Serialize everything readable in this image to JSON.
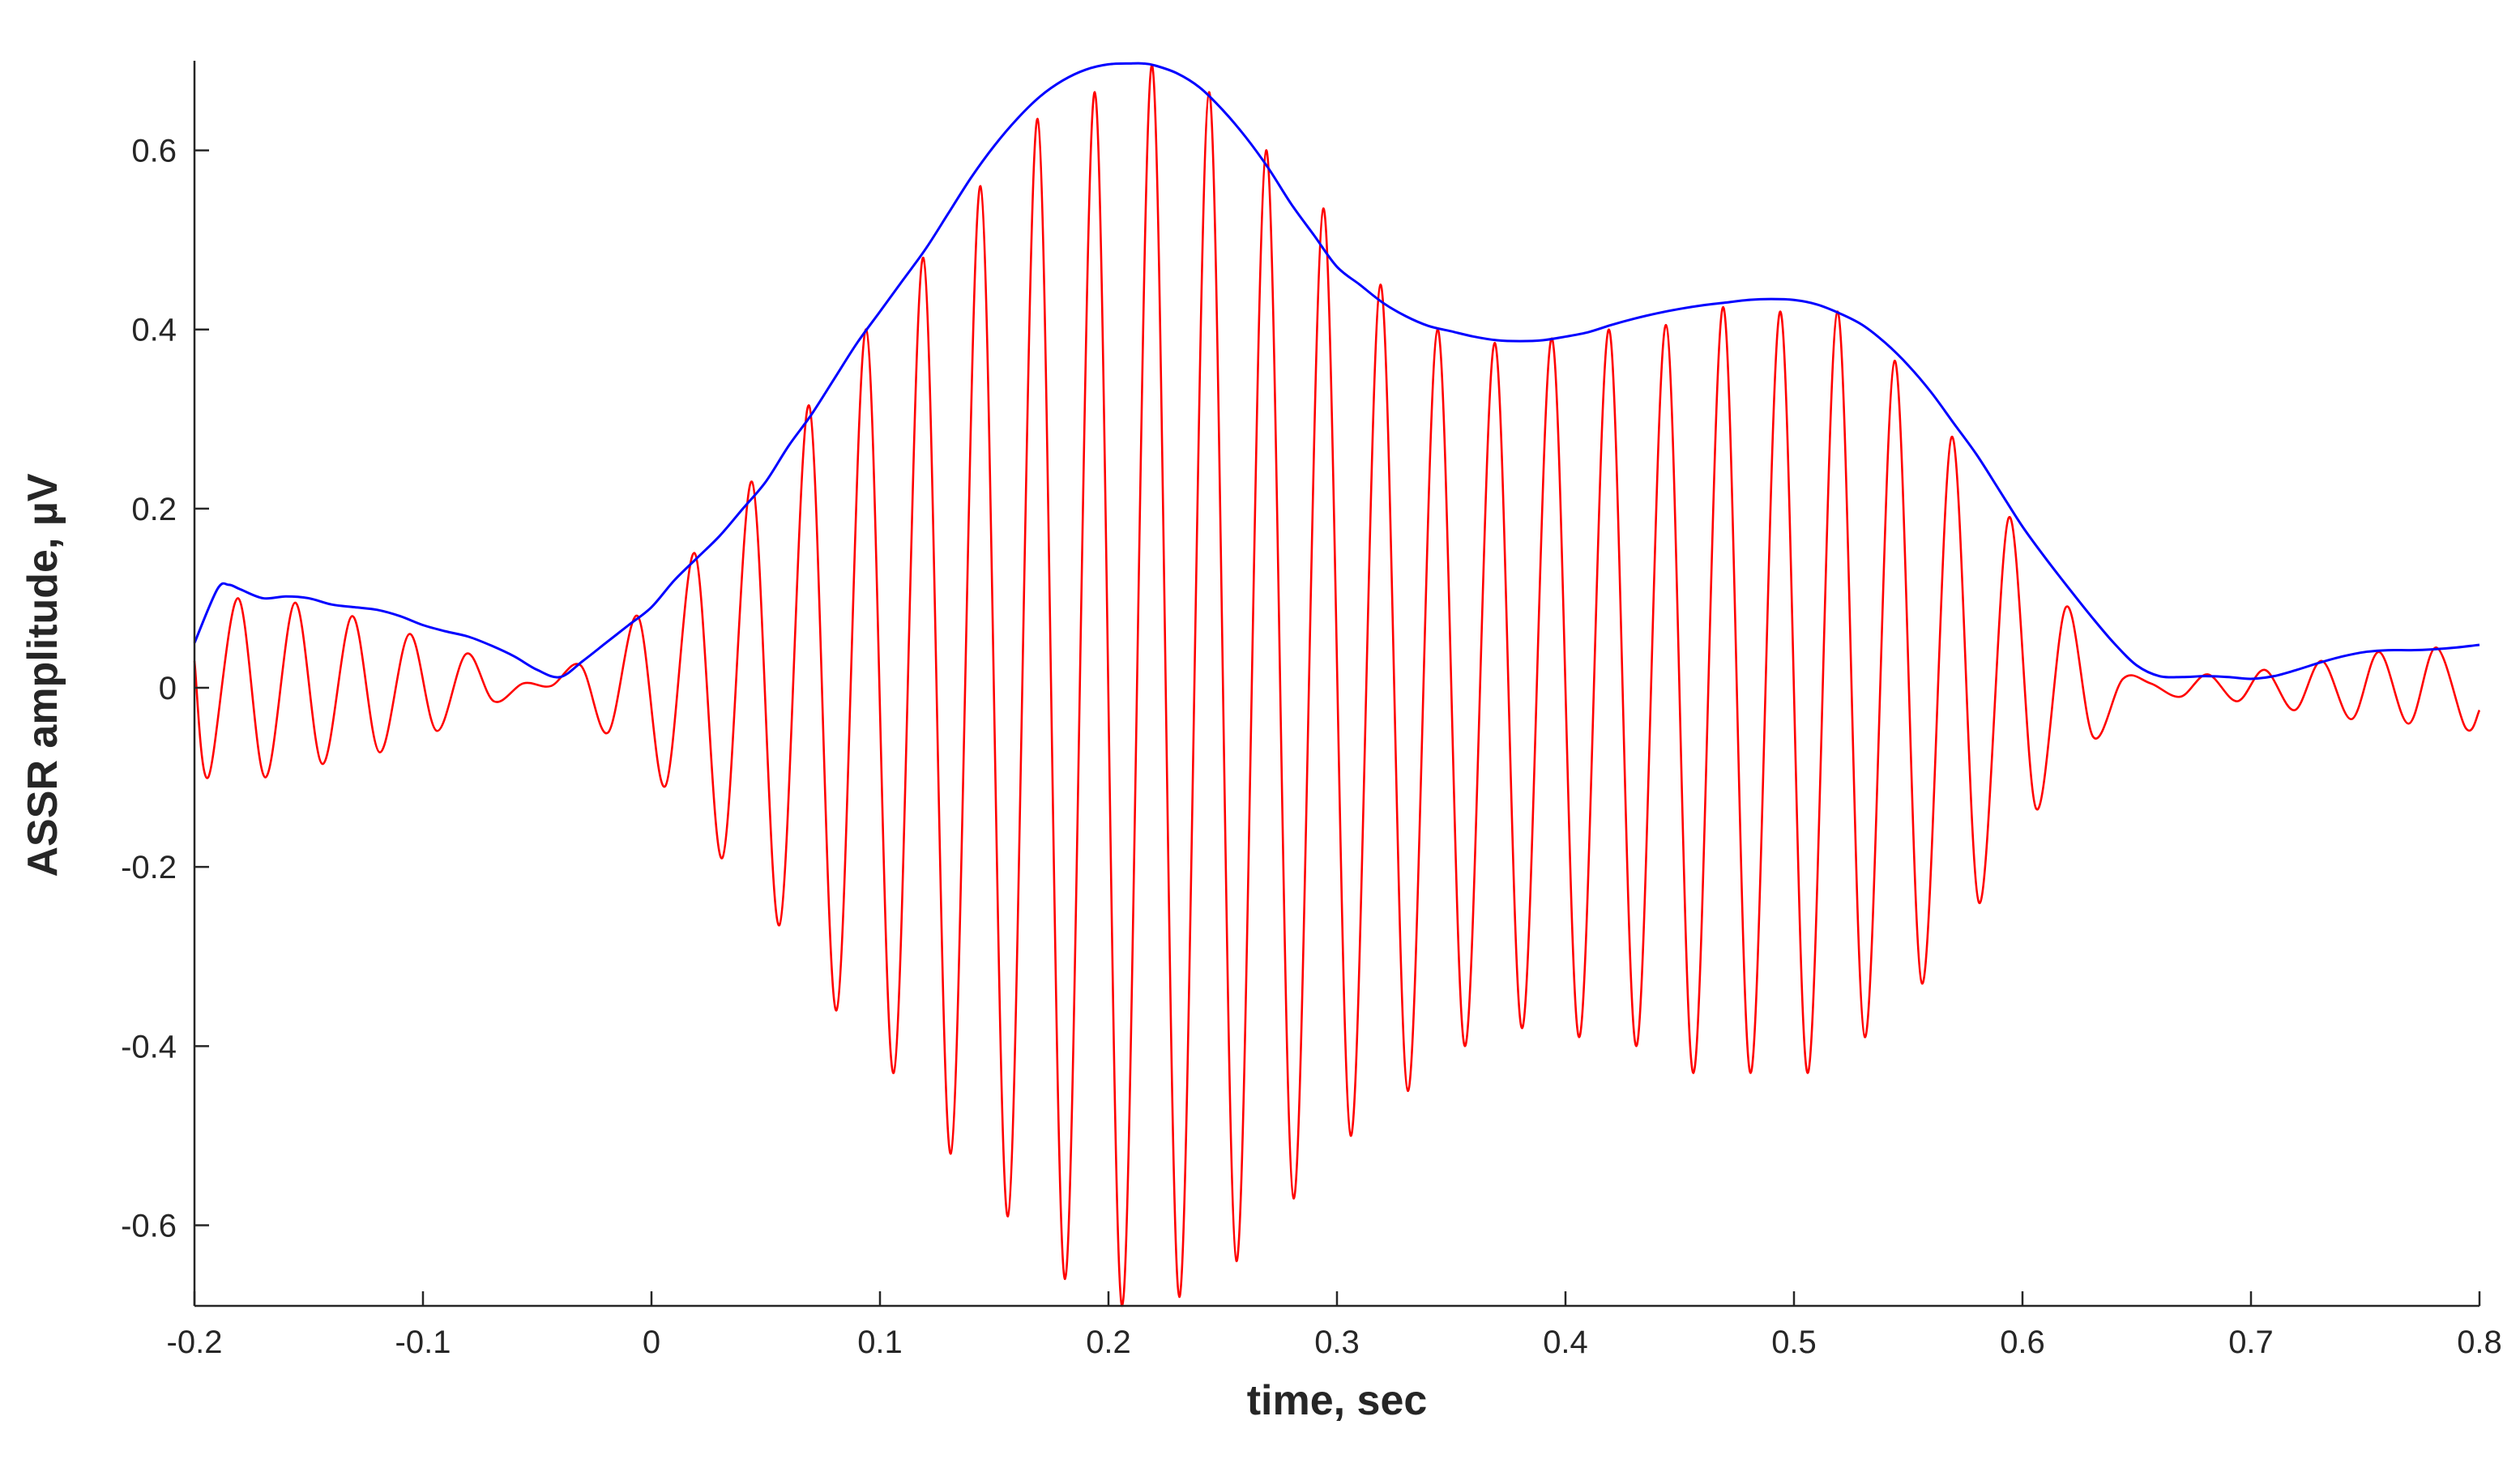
{
  "chart_data": {
    "type": "line",
    "title": "",
    "xlabel": "time, sec",
    "ylabel": "ASSR amplitude, µV",
    "xlim": [
      -0.2,
      0.8
    ],
    "ylim": [
      -0.69,
      0.7
    ],
    "xticks": [
      -0.2,
      -0.1,
      0,
      0.1,
      0.2,
      0.3,
      0.4,
      0.5,
      0.6,
      0.7,
      0.8
    ],
    "xtick_labels": [
      "-0.2",
      "-0.1",
      "0",
      "0.1",
      "0.2",
      "0.3",
      "0.4",
      "0.5",
      "0.6",
      "0.7",
      "0.8"
    ],
    "yticks": [
      0.6,
      0.4,
      0.2,
      0,
      -0.2,
      -0.4,
      -0.6
    ],
    "ytick_labels": [
      "0.6",
      "0.4",
      "0.2",
      "0",
      "-0.2",
      "-0.4",
      "-0.6"
    ],
    "grid": false,
    "legend": "none",
    "series": [
      {
        "role": "envelope",
        "color": "#0000ff",
        "x": [
          -0.2,
          -0.19,
          -0.185,
          -0.18,
          -0.17,
          -0.16,
          -0.15,
          -0.14,
          -0.13,
          -0.12,
          -0.11,
          -0.1,
          -0.09,
          -0.08,
          -0.07,
          -0.06,
          -0.05,
          -0.04,
          -0.03,
          -0.02,
          -0.01,
          0,
          0.01,
          0.02,
          0.03,
          0.04,
          0.05,
          0.06,
          0.07,
          0.08,
          0.09,
          0.1,
          0.11,
          0.12,
          0.13,
          0.14,
          0.15,
          0.16,
          0.17,
          0.18,
          0.19,
          0.2,
          0.21,
          0.215,
          0.22,
          0.23,
          0.24,
          0.25,
          0.26,
          0.27,
          0.28,
          0.29,
          0.3,
          0.31,
          0.32,
          0.33,
          0.34,
          0.35,
          0.36,
          0.37,
          0.38,
          0.39,
          0.4,
          0.41,
          0.42,
          0.43,
          0.44,
          0.45,
          0.46,
          0.47,
          0.48,
          0.49,
          0.5,
          0.51,
          0.52,
          0.53,
          0.54,
          0.55,
          0.56,
          0.57,
          0.58,
          0.59,
          0.6,
          0.61,
          0.62,
          0.63,
          0.64,
          0.65,
          0.66,
          0.67,
          0.68,
          0.69,
          0.7,
          0.71,
          0.72,
          0.73,
          0.74,
          0.75,
          0.76,
          0.77,
          0.78,
          0.79,
          0.8
        ],
        "values": [
          0.05,
          0.11,
          0.115,
          0.11,
          0.1,
          0.102,
          0.1,
          0.093,
          0.09,
          0.087,
          0.08,
          0.07,
          0.063,
          0.057,
          0.047,
          0.035,
          0.02,
          0.012,
          0.03,
          0.05,
          0.07,
          0.09,
          0.12,
          0.145,
          0.17,
          0.2,
          0.23,
          0.27,
          0.305,
          0.345,
          0.385,
          0.42,
          0.455,
          0.49,
          0.53,
          0.57,
          0.605,
          0.635,
          0.66,
          0.678,
          0.69,
          0.696,
          0.697,
          0.697,
          0.695,
          0.686,
          0.67,
          0.645,
          0.615,
          0.58,
          0.54,
          0.505,
          0.47,
          0.45,
          0.43,
          0.415,
          0.404,
          0.398,
          0.392,
          0.388,
          0.387,
          0.388,
          0.392,
          0.397,
          0.405,
          0.412,
          0.418,
          0.423,
          0.427,
          0.43,
          0.433,
          0.434,
          0.433,
          0.428,
          0.418,
          0.405,
          0.385,
          0.36,
          0.33,
          0.295,
          0.26,
          0.22,
          0.18,
          0.145,
          0.112,
          0.08,
          0.05,
          0.025,
          0.013,
          0.012,
          0.013,
          0.012,
          0.01,
          0.013,
          0.02,
          0.028,
          0.035,
          0.04,
          0.042,
          0.042,
          0.043,
          0.045,
          0.048
        ]
      },
      {
        "role": "signal",
        "color": "#ff0000",
        "frequency_hz": 40,
        "x": [
          -0.2,
          -0.194,
          -0.181,
          -0.169,
          -0.156,
          -0.144,
          -0.131,
          -0.119,
          -0.106,
          -0.094,
          -0.081,
          -0.069,
          -0.056,
          -0.044,
          -0.031,
          -0.019,
          -0.006,
          0.006,
          0.019,
          0.031,
          0.044,
          0.056,
          0.069,
          0.081,
          0.094,
          0.106,
          0.119,
          0.131,
          0.144,
          0.156,
          0.169,
          0.181,
          0.194,
          0.206,
          0.219,
          0.231,
          0.244,
          0.256,
          0.269,
          0.281,
          0.294,
          0.306,
          0.319,
          0.331,
          0.344,
          0.356,
          0.369,
          0.381,
          0.394,
          0.406,
          0.419,
          0.431,
          0.444,
          0.456,
          0.469,
          0.481,
          0.494,
          0.506,
          0.519,
          0.531,
          0.544,
          0.556,
          0.569,
          0.581,
          0.594,
          0.606,
          0.619,
          0.631,
          0.644,
          0.656,
          0.669,
          0.681,
          0.694,
          0.706,
          0.719,
          0.731,
          0.744,
          0.756,
          0.769,
          0.781,
          0.794,
          0.8
        ],
        "values": [
          0.03,
          -0.1,
          0.1,
          -0.1,
          0.095,
          -0.085,
          0.08,
          -0.072,
          0.06,
          -0.048,
          0.038,
          -0.015,
          0.005,
          0.002,
          0.025,
          -0.05,
          0.08,
          -0.11,
          0.15,
          -0.19,
          0.23,
          -0.265,
          0.315,
          -0.36,
          0.4,
          -0.43,
          0.48,
          -0.52,
          0.56,
          -0.59,
          0.635,
          -0.66,
          0.665,
          -0.69,
          0.695,
          -0.68,
          0.665,
          -0.64,
          0.6,
          -0.57,
          0.535,
          -0.5,
          0.45,
          -0.45,
          0.4,
          -0.4,
          0.385,
          -0.38,
          0.39,
          -0.39,
          0.4,
          -0.4,
          0.405,
          -0.43,
          0.425,
          -0.43,
          0.42,
          -0.43,
          0.42,
          -0.39,
          0.365,
          -0.33,
          0.28,
          -0.24,
          0.19,
          -0.135,
          0.09,
          -0.055,
          0.01,
          0.005,
          -0.01,
          0.015,
          -0.015,
          0.02,
          -0.025,
          0.03,
          -0.035,
          0.04,
          -0.04,
          0.045,
          -0.045,
          -0.025
        ]
      }
    ]
  }
}
